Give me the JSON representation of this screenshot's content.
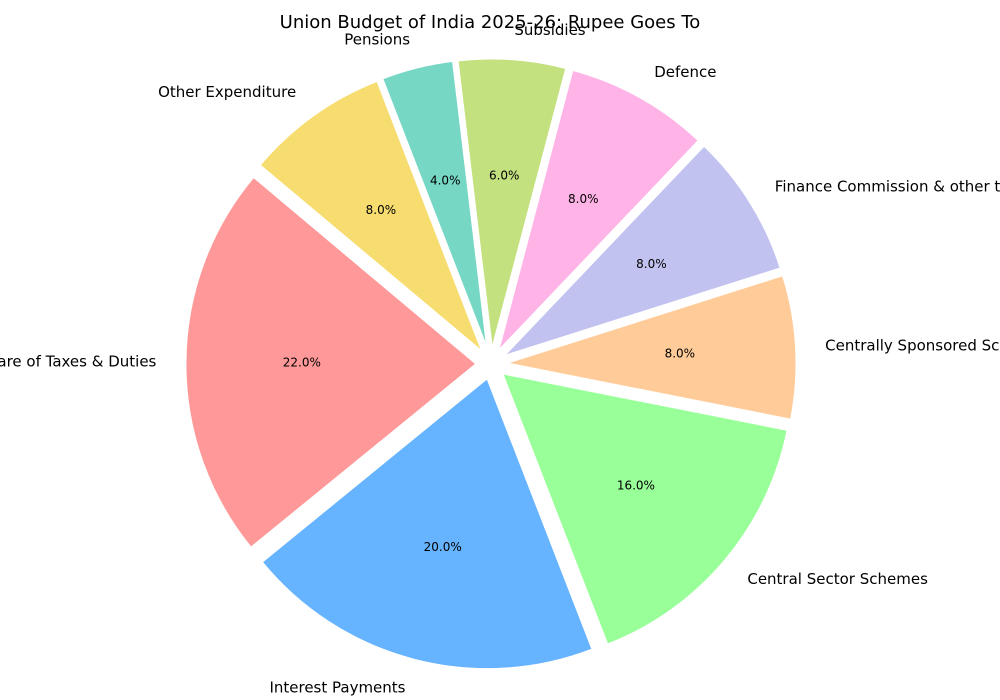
{
  "chart_data": {
    "type": "pie",
    "title": "Union Budget of India 2025-26: Rupee Goes To",
    "categories": [
      "State's Share of Taxes & Duties",
      "Interest Payments",
      "Central Sector Schemes",
      "Centrally Sponsored Schemes",
      "Finance Commission & other transfers",
      "Defence",
      "Subsidies",
      "Pensions",
      "Other Expenditure"
    ],
    "values": [
      22,
      20,
      16,
      8,
      8,
      8,
      6,
      4,
      8
    ],
    "percent_labels": [
      "22.0%",
      "20.0%",
      "16.0%",
      "8.0%",
      "8.0%",
      "8.0%",
      "6.0%",
      "4.0%",
      "8.0%"
    ],
    "colors": [
      "#ff9999",
      "#66b3ff",
      "#99ff99",
      "#ffcc99",
      "#c2c2f0",
      "#ffb3e6",
      "#c4e17f",
      "#76d7c4",
      "#f7dc6f"
    ],
    "start_angle_deg": 140,
    "exploded": true
  }
}
